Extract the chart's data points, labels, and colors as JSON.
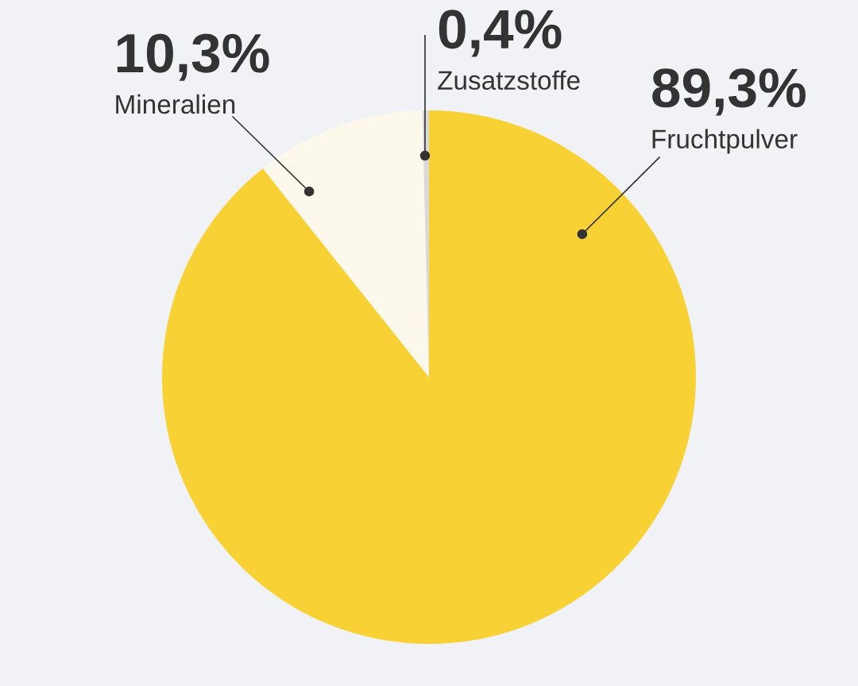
{
  "chart_data": {
    "type": "pie",
    "categories": [
      "Fruchtpulver",
      "Mineralien",
      "Zusatzstoffe"
    ],
    "values": [
      89.3,
      10.3,
      0.4
    ],
    "colors": [
      "#f8d235",
      "#fcf9ec",
      "#d9d9d9"
    ],
    "value_labels": [
      "89,3%",
      "10,3%",
      "0,4%"
    ],
    "legend": false
  }
}
